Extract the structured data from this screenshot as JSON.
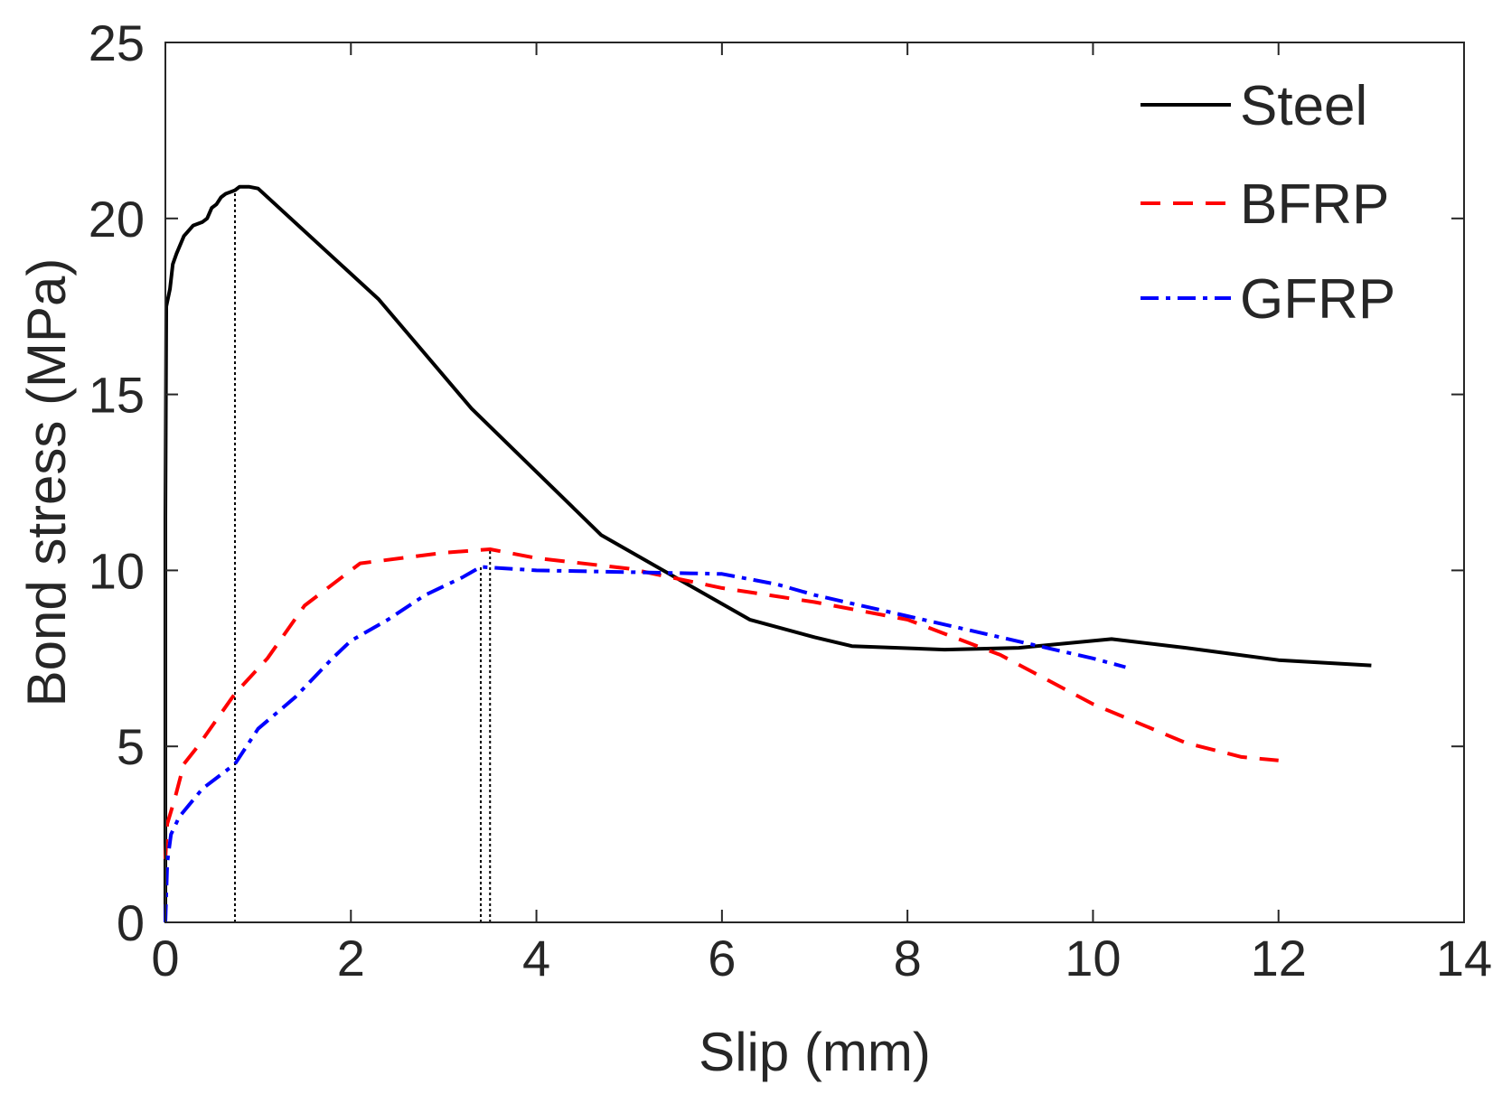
{
  "chart_data": {
    "type": "line",
    "title": "",
    "xlabel": "Slip (mm)",
    "ylabel": "Bond stress (MPa)",
    "xlim": [
      0,
      14
    ],
    "ylim": [
      0,
      25
    ],
    "xticks": [
      0,
      2,
      4,
      6,
      8,
      10,
      12,
      14
    ],
    "yticks": [
      0,
      5,
      10,
      15,
      20,
      25
    ],
    "xtick_labels": [
      "0",
      "2",
      "4",
      "6",
      "8",
      "10",
      "12",
      "14"
    ],
    "ytick_labels": [
      "0",
      "5",
      "10",
      "15",
      "20",
      "25"
    ],
    "grid": false,
    "legend_position": "top-right",
    "series": [
      {
        "name": "Steel",
        "color": "#000000",
        "style": "solid",
        "points": [
          [
            0,
            0
          ],
          [
            0,
            11.5
          ],
          [
            0.01,
            17.5
          ],
          [
            0.05,
            18.0
          ],
          [
            0.08,
            18.7
          ],
          [
            0.12,
            19.0
          ],
          [
            0.2,
            19.5
          ],
          [
            0.3,
            19.8
          ],
          [
            0.4,
            19.9
          ],
          [
            0.45,
            20.0
          ],
          [
            0.5,
            20.3
          ],
          [
            0.55,
            20.4
          ],
          [
            0.6,
            20.6
          ],
          [
            0.65,
            20.7
          ],
          [
            0.7,
            20.75
          ],
          [
            0.75,
            20.8
          ],
          [
            0.8,
            20.9
          ],
          [
            0.9,
            20.9
          ],
          [
            1.0,
            20.85
          ],
          [
            2.3,
            17.7
          ],
          [
            3.3,
            14.6
          ],
          [
            4.7,
            11.0
          ],
          [
            5.5,
            9.8
          ],
          [
            6.3,
            8.6
          ],
          [
            7.0,
            8.1
          ],
          [
            7.4,
            7.85
          ],
          [
            8.4,
            7.75
          ],
          [
            9.2,
            7.8
          ],
          [
            10.2,
            8.05
          ],
          [
            11.0,
            7.8
          ],
          [
            12.0,
            7.45
          ],
          [
            13.0,
            7.3
          ]
        ]
      },
      {
        "name": "BFRP",
        "color": "#ff0000",
        "style": "dashed",
        "points": [
          [
            0,
            1.8
          ],
          [
            0.02,
            2.8
          ],
          [
            0.1,
            3.5
          ],
          [
            0.2,
            4.5
          ],
          [
            0.35,
            5.0
          ],
          [
            0.75,
            6.5
          ],
          [
            1.1,
            7.5
          ],
          [
            1.5,
            9.0
          ],
          [
            1.9,
            9.8
          ],
          [
            2.1,
            10.2
          ],
          [
            3.0,
            10.5
          ],
          [
            3.5,
            10.6
          ],
          [
            4.0,
            10.35
          ],
          [
            5.0,
            10.05
          ],
          [
            6.0,
            9.5
          ],
          [
            7.0,
            9.1
          ],
          [
            8.0,
            8.6
          ],
          [
            9.0,
            7.6
          ],
          [
            10.0,
            6.2
          ],
          [
            11.0,
            5.1
          ],
          [
            11.6,
            4.7
          ],
          [
            12.0,
            4.6
          ]
        ]
      },
      {
        "name": "GFRP",
        "color": "#0000ff",
        "style": "dashdot",
        "points": [
          [
            0,
            0
          ],
          [
            0.02,
            1.7
          ],
          [
            0.06,
            2.5
          ],
          [
            0.15,
            3.0
          ],
          [
            0.4,
            3.8
          ],
          [
            0.75,
            4.5
          ],
          [
            1.0,
            5.5
          ],
          [
            1.4,
            6.4
          ],
          [
            1.8,
            7.5
          ],
          [
            2.0,
            8.0
          ],
          [
            2.4,
            8.6
          ],
          [
            2.8,
            9.3
          ],
          [
            3.2,
            9.8
          ],
          [
            3.4,
            10.1
          ],
          [
            4.0,
            10.0
          ],
          [
            5.0,
            9.95
          ],
          [
            6.0,
            9.9
          ],
          [
            6.6,
            9.6
          ],
          [
            7.0,
            9.3
          ],
          [
            8.0,
            8.7
          ],
          [
            9.0,
            8.1
          ],
          [
            10.0,
            7.5
          ],
          [
            10.35,
            7.25
          ]
        ]
      }
    ],
    "reference_lines": [
      {
        "x": 0.75,
        "y_top": 20.8
      },
      {
        "x": 3.4,
        "y_top": 10.1
      },
      {
        "x": 3.5,
        "y_top": 10.6
      }
    ]
  }
}
